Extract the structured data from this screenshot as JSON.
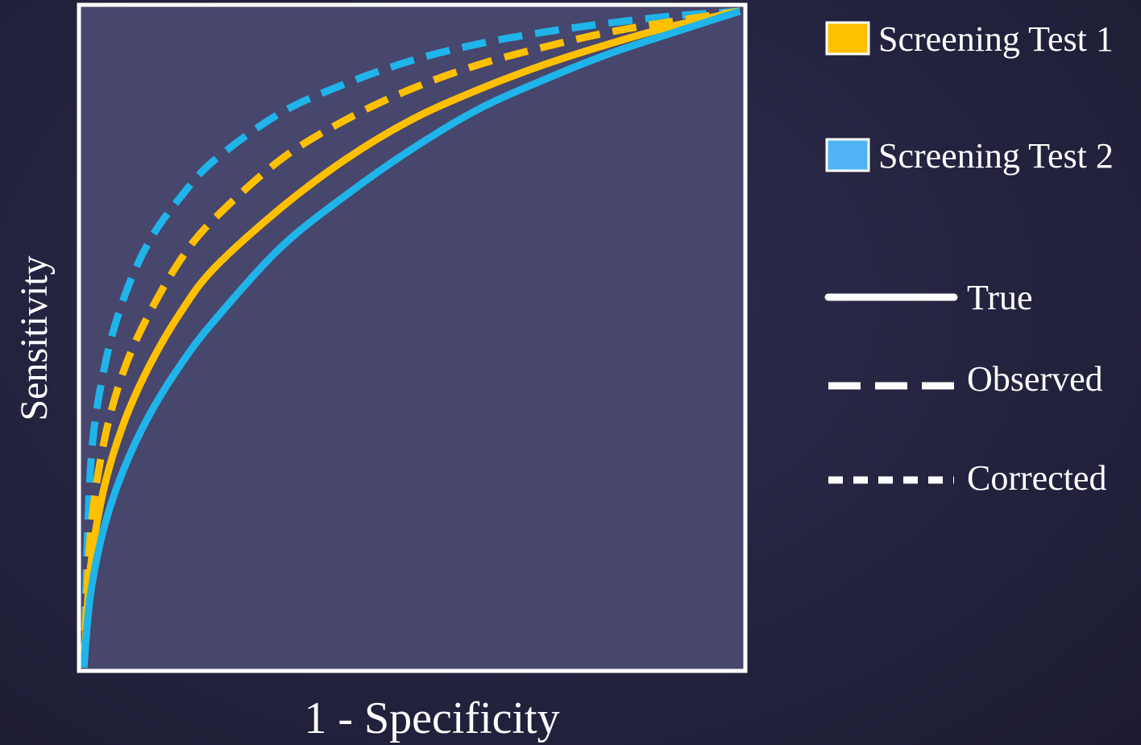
{
  "chart_data": {
    "type": "line",
    "title": "",
    "xlabel": "1 - Specificity",
    "ylabel": "Sensitivity",
    "xlim": [
      0,
      1
    ],
    "ylim": [
      0,
      1
    ],
    "grid": false,
    "legend_position": "right",
    "colors": {
      "test1": "#ffc000",
      "test2": "#1fb4ea",
      "legend_test2_swatch": "#4fb3f5",
      "plot_background": "#47466d",
      "frame": "#ffffff"
    },
    "legend": {
      "tests": [
        {
          "label": "Screening Test 1",
          "color": "#ffc000"
        },
        {
          "label": "Screening Test 2",
          "color": "#4fb3f5"
        }
      ],
      "line_styles": [
        {
          "label": "True",
          "style": "solid"
        },
        {
          "label": "Observed",
          "style": "dashed"
        },
        {
          "label": "Corrected",
          "style": "dotted"
        }
      ]
    },
    "series": [
      {
        "name": "Screening Test 2 Observed",
        "test": "Screening Test 2",
        "style": "dashed",
        "color": "#1fb4ea",
        "x": [
          0,
          0.01,
          0.03,
          0.06,
          0.1,
          0.15,
          0.2,
          0.3,
          0.4,
          0.5,
          0.6,
          0.7,
          0.8,
          0.9,
          1.0
        ],
        "y": [
          0,
          0.3,
          0.45,
          0.56,
          0.65,
          0.72,
          0.774,
          0.845,
          0.89,
          0.925,
          0.95,
          0.968,
          0.982,
          0.993,
          1.0
        ]
      },
      {
        "name": "Screening Test 1 Observed",
        "test": "Screening Test 1",
        "style": "dashed",
        "color": "#ffc000",
        "x": [
          0,
          0.01,
          0.03,
          0.06,
          0.1,
          0.15,
          0.2,
          0.3,
          0.4,
          0.5,
          0.6,
          0.7,
          0.8,
          0.9,
          1.0
        ],
        "y": [
          0,
          0.2,
          0.34,
          0.45,
          0.54,
          0.625,
          0.685,
          0.774,
          0.835,
          0.882,
          0.918,
          0.945,
          0.968,
          0.985,
          1.0
        ]
      },
      {
        "name": "Screening Test 1 True",
        "test": "Screening Test 1",
        "style": "solid",
        "color": "#ffc000",
        "x": [
          0,
          0.01,
          0.03,
          0.06,
          0.1,
          0.15,
          0.2,
          0.3,
          0.4,
          0.5,
          0.6,
          0.7,
          0.8,
          0.9,
          1.0
        ],
        "y": [
          0,
          0.15,
          0.27,
          0.37,
          0.46,
          0.545,
          0.61,
          0.7,
          0.775,
          0.835,
          0.88,
          0.918,
          0.95,
          0.978,
          1.0
        ]
      },
      {
        "name": "Screening Test 2 True",
        "test": "Screening Test 2",
        "style": "solid",
        "color": "#1fb4ea",
        "x": [
          0,
          0.01,
          0.03,
          0.06,
          0.1,
          0.15,
          0.2,
          0.3,
          0.4,
          0.5,
          0.6,
          0.7,
          0.8,
          0.9,
          1.0
        ],
        "y": [
          0,
          0.11,
          0.21,
          0.3,
          0.385,
          0.465,
          0.53,
          0.64,
          0.72,
          0.79,
          0.85,
          0.895,
          0.935,
          0.968,
          1.0
        ]
      }
    ]
  }
}
